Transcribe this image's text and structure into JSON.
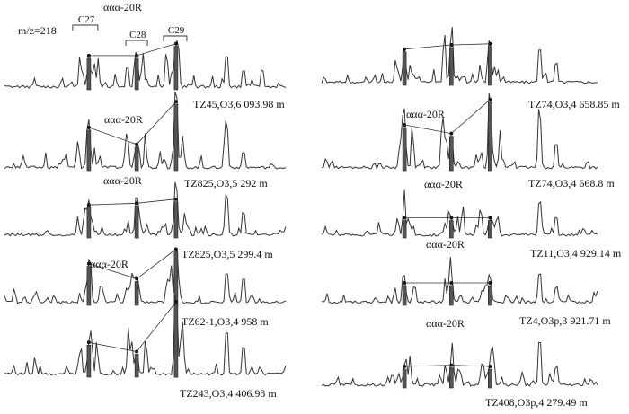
{
  "mz_label": "m/z=218",
  "group_labels": [
    "C27",
    "C28",
    "C29"
  ],
  "chart_data": [
    {
      "type": "line",
      "sample": "TZ45,O3,6 093.98 m",
      "annotation": "ααα-20R",
      "trend": [
        0.45,
        0.45,
        0.62
      ]
    },
    {
      "type": "line",
      "sample": "TZ825,O3,5 292 m",
      "annotation": "ααα-20R",
      "trend": [
        0.55,
        0.32,
        0.9
      ]
    },
    {
      "type": "line",
      "sample": "TZ825,O3,5 299.4 m",
      "annotation": "ααα-20R",
      "trend": [
        0.52,
        0.55,
        0.62
      ]
    },
    {
      "type": "line",
      "sample": "TZ62-1,O3,4 958 m",
      "annotation": "ααα-20R",
      "trend": [
        0.62,
        0.38,
        0.85
      ]
    },
    {
      "type": "line",
      "sample": "TZ243,O3,4 406.93 m",
      "annotation": "",
      "trend": [
        0.42,
        0.3,
        0.95
      ]
    },
    {
      "type": "line",
      "sample": "TZ74,O3,4 658.85 m",
      "annotation": "",
      "trend": [
        0.62,
        0.7,
        0.72
      ]
    },
    {
      "type": "line",
      "sample": "TZ74,O3,4 668.8 m",
      "annotation": "ααα-20R",
      "trend": [
        0.6,
        0.48,
        0.95
      ]
    },
    {
      "type": "line",
      "sample": "TZ11,O3,4 929.14 m",
      "annotation": "ααα-20R",
      "trend": [
        0.3,
        0.3,
        0.3
      ]
    },
    {
      "type": "line",
      "sample": "TZ4,O3p,3 921.71 m",
      "annotation": "ααα-20R",
      "trend": [
        0.4,
        0.4,
        0.4
      ]
    },
    {
      "type": "line",
      "sample": "TZ408,O3p,4 279.49 m",
      "annotation": "ααα-20R",
      "trend": [
        0.3,
        0.32,
        0.3
      ]
    }
  ]
}
